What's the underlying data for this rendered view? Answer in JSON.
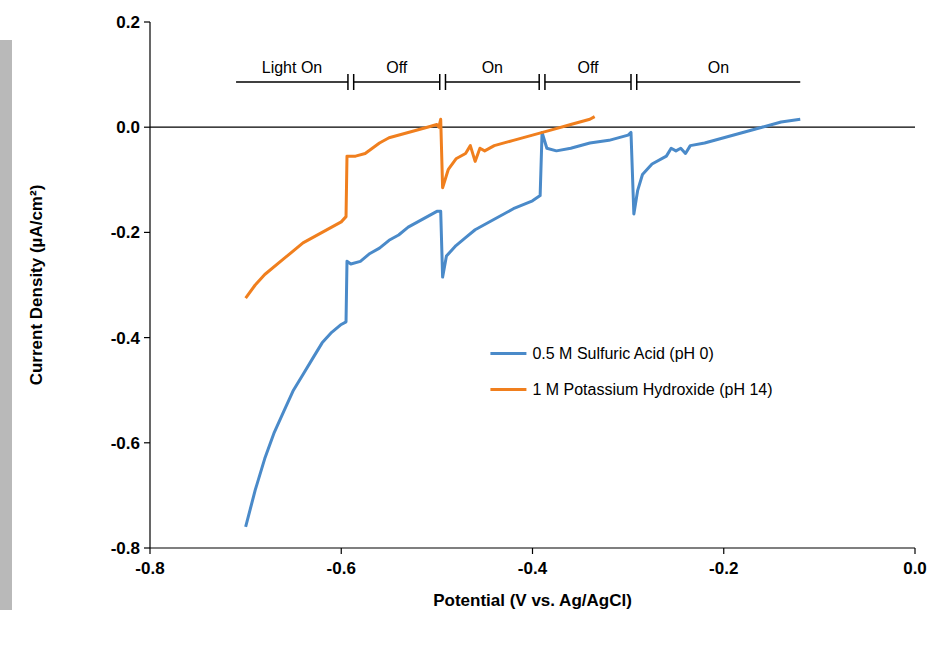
{
  "chart_data": {
    "type": "line",
    "x_label": "Potential (V vs. Ag/AgCl)",
    "y_label": "Current Density (µA/cm²)",
    "xlim": [
      -0.8,
      0.0
    ],
    "ylim": [
      -0.8,
      0.2
    ],
    "xticks": [
      -0.8,
      -0.6,
      -0.4,
      -0.2,
      {
        "value": 0,
        "label": "0.0"
      }
    ],
    "yticks": [
      -0.8,
      -0.6,
      -0.4,
      -0.2,
      {
        "value": 0,
        "label": "0.0"
      },
      0.2
    ],
    "grid": false,
    "legend": "right",
    "reference_lines": [
      0
    ],
    "light_periods": [
      {
        "label": "Light On",
        "start": -0.71,
        "end": -0.593
      },
      {
        "label": "Off",
        "start": -0.587,
        "end": -0.497
      },
      {
        "label": "On",
        "start": -0.491,
        "end": -0.393
      },
      {
        "label": "Off",
        "start": -0.387,
        "end": -0.297
      },
      {
        "label": "On",
        "start": -0.291,
        "end": -0.12
      }
    ],
    "series": [
      {
        "name": "0.5 M Sulfuric Acid (pH 0)",
        "color": "#4a8ac9",
        "line_style": "solid",
        "x": [
          -0.7,
          -0.69,
          -0.68,
          -0.67,
          -0.66,
          -0.65,
          -0.64,
          -0.63,
          -0.62,
          -0.61,
          -0.6,
          -0.595,
          -0.594,
          -0.59,
          -0.58,
          -0.57,
          -0.56,
          -0.55,
          -0.54,
          -0.53,
          -0.52,
          -0.51,
          -0.5,
          -0.496,
          -0.494,
          -0.49,
          -0.48,
          -0.47,
          -0.46,
          -0.44,
          -0.42,
          -0.4,
          -0.392,
          -0.39,
          -0.385,
          -0.375,
          -0.36,
          -0.34,
          -0.32,
          -0.3,
          -0.297,
          -0.294,
          -0.29,
          -0.285,
          -0.275,
          -0.26,
          -0.255,
          -0.25,
          -0.245,
          -0.24,
          -0.235,
          -0.22,
          -0.2,
          -0.18,
          -0.16,
          -0.14,
          -0.12
        ],
        "values": [
          -0.76,
          -0.69,
          -0.63,
          -0.58,
          -0.54,
          -0.5,
          -0.47,
          -0.44,
          -0.41,
          -0.39,
          -0.375,
          -0.37,
          -0.255,
          -0.26,
          -0.255,
          -0.24,
          -0.23,
          -0.215,
          -0.205,
          -0.19,
          -0.18,
          -0.17,
          -0.16,
          -0.16,
          -0.285,
          -0.245,
          -0.225,
          -0.21,
          -0.195,
          -0.175,
          -0.155,
          -0.14,
          -0.13,
          -0.01,
          -0.04,
          -0.045,
          -0.04,
          -0.03,
          -0.025,
          -0.015,
          -0.01,
          -0.165,
          -0.12,
          -0.09,
          -0.07,
          -0.055,
          -0.04,
          -0.045,
          -0.04,
          -0.05,
          -0.035,
          -0.03,
          -0.02,
          -0.01,
          0.0,
          0.01,
          0.015
        ]
      },
      {
        "name": "1 M Potassium Hydroxide (pH 14)",
        "color": "#f07f1e",
        "line_style": "solid",
        "x": [
          -0.7,
          -0.69,
          -0.68,
          -0.66,
          -0.64,
          -0.62,
          -0.6,
          -0.595,
          -0.594,
          -0.585,
          -0.575,
          -0.56,
          -0.55,
          -0.53,
          -0.51,
          -0.5,
          -0.498,
          -0.496,
          -0.494,
          -0.488,
          -0.48,
          -0.47,
          -0.465,
          -0.46,
          -0.455,
          -0.45,
          -0.44,
          -0.42,
          -0.4,
          -0.38,
          -0.36,
          -0.34,
          -0.335
        ],
        "values": [
          -0.325,
          -0.3,
          -0.28,
          -0.25,
          -0.22,
          -0.2,
          -0.18,
          -0.17,
          -0.055,
          -0.055,
          -0.05,
          -0.03,
          -0.02,
          -0.01,
          0.0,
          0.005,
          0.0,
          0.015,
          -0.115,
          -0.08,
          -0.06,
          -0.05,
          -0.035,
          -0.065,
          -0.04,
          -0.045,
          -0.035,
          -0.025,
          -0.015,
          -0.005,
          0.005,
          0.015,
          0.02
        ]
      }
    ]
  }
}
